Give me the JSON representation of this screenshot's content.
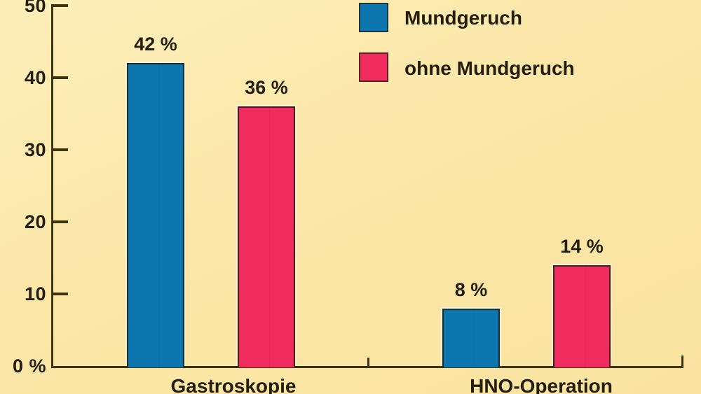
{
  "colors": {
    "background": "#fce7a8",
    "axis": "#3d350f",
    "text": "#241e0e",
    "series_blue": "#0e76ae",
    "series_pink": "#f02b5d"
  },
  "chart_data": {
    "type": "bar",
    "title": "",
    "categories": [
      "Gastroskopie",
      "HNO-Operation"
    ],
    "series": [
      {
        "name": "Mundgeruch",
        "color": "#0e76ae",
        "values": [
          42,
          8
        ],
        "value_labels": [
          "42 %",
          "8 %"
        ]
      },
      {
        "name": "ohne Mundgeruch",
        "color": "#f02b5d",
        "values": [
          36,
          14
        ],
        "value_labels": [
          "36 %",
          "14 %"
        ]
      }
    ],
    "xlabel": "",
    "ylabel": "",
    "unit": "%",
    "ylim": [
      0,
      50
    ],
    "yticks": [
      0,
      10,
      20,
      30,
      40,
      50
    ],
    "ytick_labels": [
      "0 %",
      "10",
      "20",
      "30",
      "40",
      "50"
    ],
    "grid": false,
    "legend_position": "top-right"
  }
}
